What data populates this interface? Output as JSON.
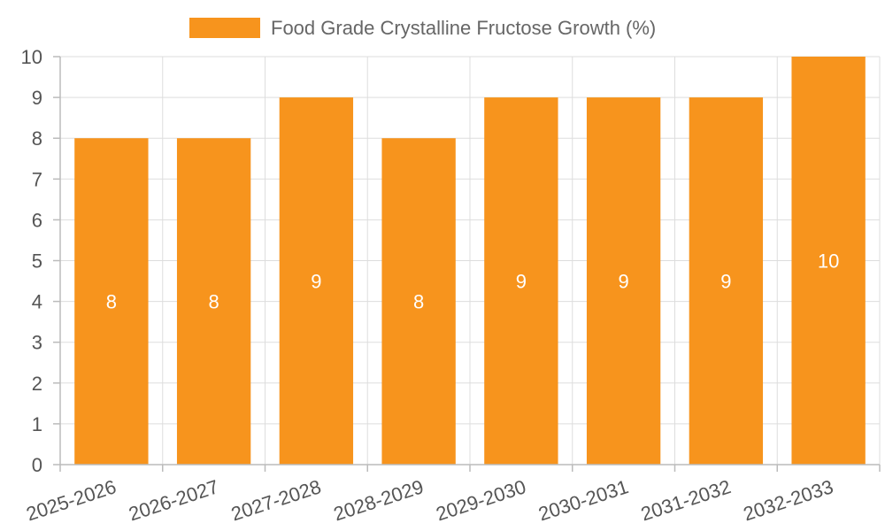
{
  "chart_data": {
    "type": "bar",
    "categories": [
      "2025-2026",
      "2026-2027",
      "2027-2028",
      "2028-2029",
      "2029-2030",
      "2030-2031",
      "2031-2032",
      "2032-2033"
    ],
    "series": [
      {
        "name": "Food Grade Crystalline Fructose Growth (%)",
        "values": [
          8,
          8,
          9,
          8,
          9,
          9,
          9,
          10
        ]
      }
    ],
    "y_ticks": [
      "0",
      "1",
      "2",
      "3",
      "4",
      "5",
      "6",
      "7",
      "8",
      "9",
      "10"
    ],
    "ylim": [
      0,
      10
    ],
    "bar_color": "#f7941d",
    "legend_position": "top",
    "grid": true,
    "data_labels": true
  }
}
